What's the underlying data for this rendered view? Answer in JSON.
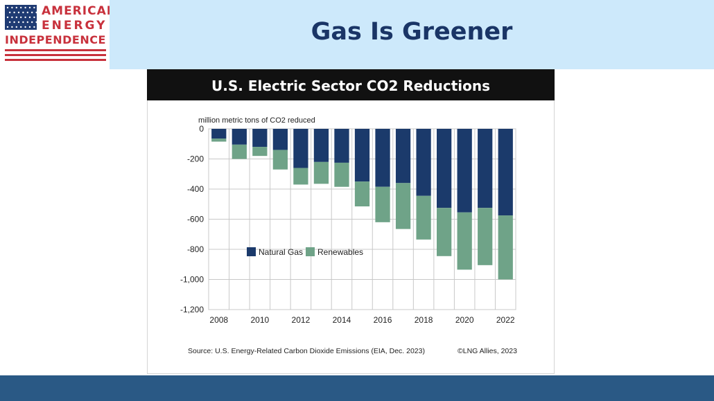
{
  "logo": {
    "line1": "AMERICAN",
    "line2": "ENERGY",
    "line3": "INDEPENDENCE",
    "icon": "us-flag-icon",
    "colors": {
      "red": "#c8313c",
      "blue": "#1f3b73"
    }
  },
  "header": {
    "title": "Gas Is Greener",
    "background": "#cde9fb",
    "title_color": "#1a3566"
  },
  "footer": {
    "background": "#2a5985"
  },
  "card": {
    "title": "U.S. Electric Sector CO2 Reductions",
    "source": "Source: U.S. Energy-Related Carbon Dioxide Emissions (EIA, Dec. 2023)",
    "copyright": "©LNG Allies, 2023"
  },
  "chart_data": {
    "type": "bar",
    "stacked": true,
    "ylabel": "million metric tons of CO2 reduced",
    "categories": [
      2008,
      2009,
      2010,
      2011,
      2012,
      2013,
      2014,
      2015,
      2016,
      2017,
      2018,
      2019,
      2020,
      2021,
      2022
    ],
    "x_tick_labels": [
      "2008",
      "2010",
      "2012",
      "2014",
      "2016",
      "2018",
      "2020",
      "2022"
    ],
    "ylim": [
      -1200,
      0
    ],
    "y_ticks": [
      0,
      -200,
      -400,
      -600,
      -800,
      -1000,
      -1200
    ],
    "y_tick_labels": [
      "0",
      "-200",
      "-400",
      "-600",
      "-800",
      "-1,000",
      "-1,200"
    ],
    "grid": true,
    "legend_position": "center",
    "series": [
      {
        "name": "Natural Gas",
        "color": "#1b3a6b",
        "values": [
          -65,
          -105,
          -120,
          -140,
          -260,
          -220,
          -225,
          -350,
          -385,
          -360,
          -445,
          -525,
          -555,
          -525,
          -575
        ]
      },
      {
        "name": "Renewables",
        "color": "#6fa388",
        "values": [
          -20,
          -95,
          -60,
          -130,
          -110,
          -145,
          -160,
          -165,
          -235,
          -305,
          -290,
          -320,
          -380,
          -380,
          -425
        ]
      }
    ]
  }
}
